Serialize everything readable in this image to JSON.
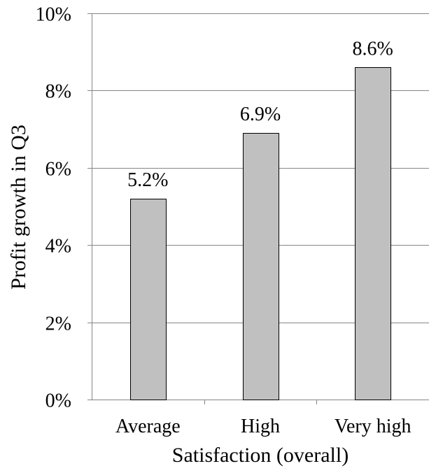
{
  "chart_data": {
    "type": "bar",
    "title": "",
    "xlabel": "Satisfaction (overall)",
    "ylabel": "Profit growth in Q3",
    "categories": [
      "Average",
      "High",
      "Very high"
    ],
    "values": [
      5.2,
      6.9,
      8.6
    ],
    "value_labels": [
      "5.2%",
      "6.9%",
      "8.6%"
    ],
    "ylim": [
      0,
      10
    ],
    "yticks": [
      0,
      2,
      4,
      6,
      8,
      10
    ],
    "ytick_labels": [
      "0%",
      "2%",
      "4%",
      "6%",
      "8%",
      "10%"
    ],
    "grid": true,
    "legend": "none",
    "bar_color": "#c0c0c0",
    "bar_edge_color": "#000000",
    "grid_color": "#868686"
  }
}
